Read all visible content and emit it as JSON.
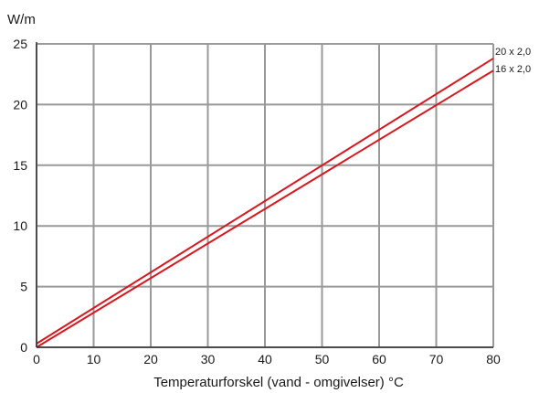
{
  "chart_data": {
    "type": "line",
    "title": "",
    "xlabel": "Temperaturforskel (vand - omgivelser) °C",
    "ylabel": "W/m",
    "xlim": [
      0,
      80
    ],
    "ylim": [
      0,
      25
    ],
    "x_ticks": [
      "0",
      "10",
      "20",
      "30",
      "40",
      "50",
      "60",
      "70",
      "80"
    ],
    "y_ticks": [
      "0",
      "5",
      "10",
      "15",
      "20",
      "25"
    ],
    "grid": true,
    "series": [
      {
        "name": "20 x 2,0",
        "x": [
          0,
          80
        ],
        "y": [
          0.3,
          23.8
        ]
      },
      {
        "name": "16 x 2,0",
        "x": [
          0,
          80
        ],
        "y": [
          0.0,
          22.8
        ]
      }
    ],
    "colors": {
      "line": "#d7181f",
      "grid": "#999999",
      "axis": "#333333"
    }
  }
}
